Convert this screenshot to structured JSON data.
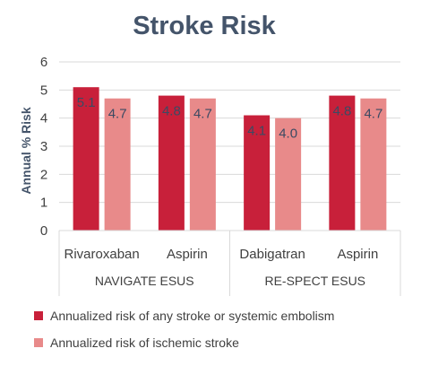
{
  "chart_data": {
    "type": "bar",
    "title": "Stroke Risk",
    "ylabel": "Annual % Risk",
    "xlabel": "",
    "ylim": [
      0,
      6
    ],
    "yticks": [
      0,
      1,
      2,
      3,
      4,
      5,
      6
    ],
    "grid": true,
    "legend_position": "bottom-left",
    "categories": [
      "Rivaroxaban",
      "Aspirin",
      "Dabigatran",
      "Aspirin"
    ],
    "groups": [
      {
        "label": "NAVIGATE ESUS",
        "categories": [
          0,
          1
        ]
      },
      {
        "label": "RE-SPECT ESUS",
        "categories": [
          2,
          3
        ]
      }
    ],
    "series": [
      {
        "name": "Annualized risk of any stroke or systemic embolism",
        "color": "#c8203a",
        "values": [
          5.1,
          4.8,
          4.1,
          4.8
        ],
        "labels": [
          "5.1",
          "4.8",
          "4.1",
          "4.8"
        ]
      },
      {
        "name": "Annualized risk of ischemic stroke",
        "color": "#e88a8a",
        "values": [
          4.7,
          4.7,
          4.0,
          4.7
        ],
        "labels": [
          "4.7",
          "4.7",
          "4.0",
          "4.7"
        ]
      }
    ]
  }
}
